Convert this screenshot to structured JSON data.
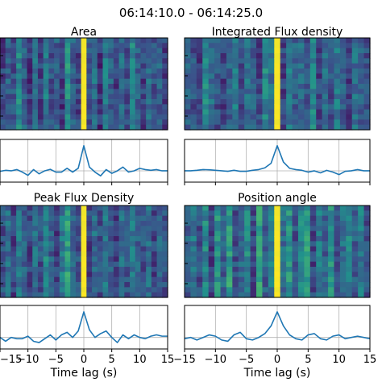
{
  "figure": {
    "title": "06:14:10.0 - 06:14:25.0"
  },
  "chart_data": {
    "type": "heatmap",
    "xlabel": "Time lag (s)",
    "xlim": [
      -15,
      15
    ],
    "xticks": [
      -15,
      -10,
      -5,
      0,
      5,
      10,
      15
    ],
    "xtick_labels": [
      "−15",
      "−10",
      "−5",
      "0",
      "5",
      "10",
      "15"
    ],
    "grid": true,
    "colormap": [
      "#440154",
      "#3b528b",
      "#21918c",
      "#5ec962",
      "#fde725"
    ],
    "panels": [
      {
        "title": "Area",
        "line": {
          "x": [
            -15,
            -14,
            -13,
            -12,
            -11,
            -10,
            -9,
            -8,
            -7,
            -6,
            -5,
            -4,
            -3,
            -2,
            -1,
            0,
            1,
            2,
            3,
            4,
            5,
            6,
            7,
            8,
            9,
            10,
            11,
            12,
            13,
            14,
            15
          ],
          "y": [
            -0.02,
            0.02,
            0.0,
            0.05,
            -0.05,
            -0.18,
            0.05,
            -0.12,
            0.0,
            0.06,
            -0.05,
            -0.05,
            0.1,
            -0.05,
            0.1,
            1.0,
            0.15,
            -0.05,
            -0.2,
            0.05,
            -0.1,
            0.0,
            0.15,
            -0.05,
            0.0,
            0.1,
            0.05,
            0.02,
            0.05,
            0.0,
            0.0
          ]
        },
        "heat_columns": [
          0.2,
          0.3,
          0.25,
          0.45,
          0.3,
          0.15,
          0.35,
          0.2,
          0.4,
          0.25,
          0.3,
          0.15,
          0.5,
          0.3,
          0.2,
          1.0,
          0.25,
          0.35,
          0.15,
          0.4,
          0.3,
          0.2,
          0.35,
          0.25,
          0.45,
          0.3,
          0.2,
          0.35,
          0.25,
          0.3,
          0.2
        ]
      },
      {
        "title": "Integrated Flux density",
        "line": {
          "x": [
            -15,
            -14,
            -13,
            -12,
            -11,
            -10,
            -9,
            -8,
            -7,
            -6,
            -5,
            -4,
            -3,
            -2,
            -1,
            0,
            1,
            2,
            3,
            4,
            5,
            6,
            7,
            8,
            9,
            10,
            11,
            12,
            13,
            14,
            15
          ],
          "y": [
            0.0,
            0.0,
            0.02,
            0.05,
            0.04,
            0.02,
            0.0,
            -0.02,
            0.02,
            -0.02,
            -0.02,
            0.02,
            0.05,
            0.12,
            0.3,
            1.0,
            0.35,
            0.1,
            0.05,
            0.02,
            -0.05,
            0.0,
            -0.08,
            0.02,
            -0.05,
            -0.15,
            -0.02,
            0.0,
            0.05,
            0.0,
            0.0
          ]
        },
        "heat_columns": [
          0.3,
          0.25,
          0.2,
          0.45,
          0.35,
          0.25,
          0.2,
          0.3,
          0.4,
          0.25,
          0.35,
          0.3,
          0.2,
          0.45,
          0.35,
          1.0,
          0.2,
          0.4,
          0.3,
          0.35,
          0.25,
          0.45,
          0.2,
          0.35,
          0.25,
          0.4,
          0.3,
          0.2,
          0.35,
          0.3,
          0.25
        ]
      },
      {
        "title": "Peak Flux Density",
        "line": {
          "x": [
            -15,
            -14,
            -13,
            -12,
            -11,
            -10,
            -9,
            -8,
            -7,
            -6,
            -5,
            -4,
            -3,
            -2,
            -1,
            0,
            1,
            2,
            3,
            4,
            5,
            6,
            7,
            8,
            9,
            10,
            11,
            12,
            13,
            14,
            15
          ],
          "y": [
            0.0,
            -0.15,
            0.0,
            -0.05,
            -0.05,
            0.05,
            -0.15,
            -0.2,
            -0.05,
            0.1,
            -0.1,
            0.1,
            0.2,
            0.0,
            0.25,
            1.0,
            0.3,
            0.0,
            0.15,
            0.25,
            0.0,
            -0.2,
            0.1,
            -0.05,
            0.1,
            0.0,
            -0.05,
            0.05,
            0.1,
            0.05,
            0.05
          ]
        },
        "heat_columns": [
          0.25,
          0.35,
          0.2,
          0.4,
          0.3,
          0.2,
          0.35,
          0.25,
          0.45,
          0.3,
          0.2,
          0.4,
          0.55,
          0.3,
          0.25,
          1.0,
          0.2,
          0.35,
          0.25,
          0.4,
          0.3,
          0.2,
          0.35,
          0.25,
          0.4,
          0.3,
          0.25,
          0.35,
          0.2,
          0.3,
          0.25
        ]
      },
      {
        "title": "Position angle",
        "line": {
          "x": [
            -15,
            -14,
            -13,
            -12,
            -11,
            -10,
            -9,
            -8,
            -7,
            -6,
            -5,
            -4,
            -3,
            -2,
            -1,
            0,
            1,
            2,
            3,
            4,
            5,
            6,
            7,
            8,
            9,
            10,
            11,
            12,
            13,
            14,
            15
          ],
          "y": [
            -0.05,
            0.0,
            -0.1,
            0.0,
            0.1,
            0.05,
            -0.1,
            -0.15,
            0.1,
            0.2,
            -0.05,
            -0.1,
            0.0,
            0.15,
            0.45,
            1.0,
            0.45,
            0.1,
            -0.05,
            -0.1,
            0.1,
            0.15,
            -0.05,
            -0.1,
            0.05,
            0.1,
            -0.05,
            0.0,
            0.05,
            0.0,
            -0.05
          ]
        },
        "heat_columns": [
          0.3,
          0.4,
          0.25,
          0.45,
          0.2,
          0.5,
          0.3,
          0.55,
          0.25,
          0.35,
          0.45,
          0.2,
          0.55,
          0.3,
          0.4,
          1.0,
          0.35,
          0.5,
          0.25,
          0.45,
          0.55,
          0.2,
          0.4,
          0.3,
          0.5,
          0.25,
          0.35,
          0.45,
          0.3,
          0.4,
          0.25
        ]
      }
    ]
  }
}
